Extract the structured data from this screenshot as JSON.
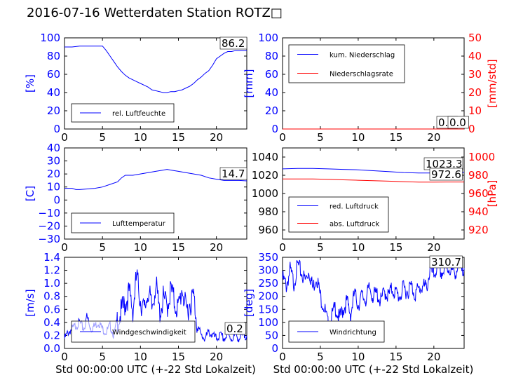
{
  "title": "2016-07-16 Wetterdaten Station ROTZ□",
  "colors": {
    "blue": "#0000ff",
    "red": "#ff0000",
    "light_blue": "#8080ff",
    "black": "#000000"
  },
  "chart_data": [
    {
      "type": "line",
      "ylabel": "[%]",
      "xlim": [
        0,
        24
      ],
      "ylim": [
        0,
        100
      ],
      "xticks": [
        "0",
        "5",
        "10",
        "15",
        "20"
      ],
      "yticks": [
        "0",
        "20",
        "40",
        "60",
        "80",
        "100"
      ],
      "legend": [
        {
          "label": "rel. Luftfeuchte",
          "color": "#0000ff"
        }
      ],
      "legend_position": "lower-left",
      "annotation": "86.2",
      "series": [
        {
          "name": "rel. Luftfeuchte",
          "color": "#0000ff",
          "x": [
            0,
            1,
            2,
            3,
            4,
            5,
            5.5,
            6,
            6.5,
            7,
            7.5,
            8,
            8.5,
            9,
            9.5,
            10,
            10.5,
            11,
            11.5,
            12,
            12.5,
            13,
            13.5,
            14,
            14.5,
            15,
            15.5,
            16,
            16.5,
            17,
            17.5,
            18,
            18.5,
            19,
            19.5,
            20,
            20.5,
            21,
            21.5,
            22,
            22.5,
            23,
            23.5,
            24
          ],
          "y": [
            90,
            90,
            91,
            91,
            91,
            91,
            86,
            80,
            74,
            68,
            63,
            59,
            56,
            54,
            52,
            50,
            48,
            46,
            43,
            42,
            41,
            40,
            40,
            41,
            41,
            42,
            43,
            45,
            47,
            50,
            54,
            57,
            61,
            64,
            70,
            77,
            80,
            83,
            85,
            85,
            86,
            86,
            86,
            86
          ]
        }
      ]
    },
    {
      "type": "line",
      "ylabel": "[mm]",
      "ylabel_right": "[mm/std]",
      "xlim": [
        0,
        24
      ],
      "ylim": [
        0,
        100
      ],
      "ylim_right": [
        0,
        50
      ],
      "xticks": [
        "0",
        "5",
        "10",
        "15",
        "20"
      ],
      "yticks": [
        "0",
        "20",
        "40",
        "60",
        "80",
        "100"
      ],
      "yticks_right": [
        "0",
        "10",
        "20",
        "30",
        "40",
        "50"
      ],
      "legend": [
        {
          "label": "kum. Niederschlag",
          "color": "#0000ff"
        },
        {
          "label": "Niederschlagsrate",
          "color": "#ff0000"
        }
      ],
      "legend_position": "upper-left",
      "annotation_1": "0.0",
      "annotation_2": "0.0",
      "series": [
        {
          "name": "kum. Niederschlag",
          "color": "#0000ff",
          "axis": "left",
          "x": [
            0,
            24
          ],
          "y": [
            0,
            0
          ]
        },
        {
          "name": "Niederschlagsrate",
          "color": "#ff0000",
          "axis": "right",
          "x": [
            0,
            24
          ],
          "y": [
            0,
            0
          ]
        }
      ]
    },
    {
      "type": "line",
      "ylabel": "[C]",
      "xlim": [
        0,
        24
      ],
      "ylim": [
        -30,
        40
      ],
      "xticks": [
        "0",
        "5",
        "10",
        "15",
        "20"
      ],
      "yticks": [
        "−30",
        "−20",
        "−10",
        "0",
        "10",
        "20",
        "30",
        "40"
      ],
      "legend": [
        {
          "label": "Lufttemperatur",
          "color": "#0000ff"
        }
      ],
      "legend_position": "lower-left",
      "annotation": "14.7",
      "series": [
        {
          "name": "Lufttemperatur",
          "color": "#0000ff",
          "x": [
            0,
            1,
            1.5,
            2,
            3,
            4,
            5,
            6,
            7,
            7.5,
            8,
            9,
            10,
            11,
            12,
            13,
            13.5,
            14,
            15,
            16,
            17,
            18,
            19,
            20,
            21,
            22,
            23,
            24
          ],
          "y": [
            9,
            9,
            8,
            8,
            8.5,
            9,
            10,
            12,
            14,
            17,
            19,
            19,
            20,
            21,
            22,
            23,
            23.5,
            23,
            22,
            21,
            20,
            19,
            17,
            16,
            15,
            15,
            15,
            14.7
          ]
        }
      ]
    },
    {
      "type": "line",
      "ylabel_right": "[hPa]",
      "xlim": [
        0,
        24
      ],
      "ylim": [
        950,
        1050
      ],
      "ylim_right": [
        910,
        1010
      ],
      "xticks": [
        "0",
        "5",
        "10",
        "15",
        "20"
      ],
      "yticks": [
        "960",
        "980",
        "1000",
        "1020",
        "1040"
      ],
      "yticks_right": [
        "920",
        "940",
        "960",
        "980",
        "1000"
      ],
      "legend": [
        {
          "label": "red. Luftdruck",
          "color": "#0000ff"
        },
        {
          "label": "abs. Luftdruck",
          "color": "#ff0000"
        }
      ],
      "legend_position": "lower-left",
      "annotation_1": "1023.3",
      "annotation_2": "972.6",
      "series": [
        {
          "name": "red. Luftdruck",
          "color": "#0000ff",
          "axis": "left",
          "x": [
            0,
            2,
            4,
            6,
            8,
            10,
            12,
            14,
            16,
            18,
            20,
            22,
            24
          ],
          "y": [
            1027,
            1027.5,
            1027.5,
            1027,
            1026.5,
            1026,
            1025,
            1024,
            1023,
            1022.5,
            1022.5,
            1023,
            1023.3
          ]
        },
        {
          "name": "abs. Luftdruck",
          "color": "#ff0000",
          "axis": "right",
          "x": [
            0,
            2,
            4,
            6,
            8,
            10,
            12,
            14,
            16,
            18,
            20,
            22,
            24
          ],
          "y": [
            976,
            976,
            976,
            975.5,
            975,
            974.5,
            974,
            973.5,
            973,
            972.5,
            972.5,
            972.6,
            972.6
          ]
        }
      ]
    },
    {
      "type": "line",
      "ylabel": "[m/s]",
      "xlabel": "Std 00:00:00 UTC (+-22 Std Lokalzeit)",
      "xlim": [
        0,
        24
      ],
      "ylim": [
        0,
        1.4
      ],
      "xticks": [
        "0",
        "5",
        "10",
        "15",
        "20"
      ],
      "yticks": [
        "0.0",
        "0.2",
        "0.4",
        "0.6",
        "0.8",
        "1.0",
        "1.2",
        "1.4"
      ],
      "legend": [
        {
          "label": "Windgeschwindigkeit",
          "color": "#0000ff"
        }
      ],
      "legend_position": "lower-center",
      "annotation": "0.2",
      "series": [
        {
          "name": "Windgeschwindigkeit",
          "color": "#0000ff",
          "x": [
            0,
            0.5,
            1,
            1.5,
            2,
            2.5,
            3,
            3.5,
            4,
            4.5,
            5,
            5.5,
            6,
            6.5,
            7,
            7.5,
            8,
            8.5,
            9,
            9.5,
            10,
            10.5,
            11,
            11.5,
            12,
            12.5,
            13,
            13.5,
            14,
            14.5,
            15,
            15.5,
            16,
            16.5,
            17,
            17.5,
            18,
            18.5,
            19,
            19.5,
            20,
            20.5,
            21,
            21.5,
            22,
            22.5,
            23,
            23.5,
            24
          ],
          "y": [
            0.15,
            0.25,
            0.3,
            0.35,
            0.4,
            0.3,
            0.45,
            0.3,
            0.35,
            0.4,
            0.3,
            0.25,
            0.35,
            0.2,
            0.45,
            0.55,
            0.7,
            0.85,
            0.6,
            1.1,
            0.75,
            0.55,
            0.9,
            0.6,
            1.0,
            0.55,
            0.75,
            0.65,
            0.9,
            0.7,
            0.6,
            0.95,
            0.55,
            0.7,
            0.8,
            0.35,
            0.2,
            0.15,
            0.25,
            0.2,
            0.15,
            0.2,
            0.15,
            0.2,
            0.15,
            0.2,
            0.15,
            0.2,
            0.2
          ]
        }
      ]
    },
    {
      "type": "line",
      "ylabel": "[deg]",
      "xlabel": "Std 00:00:00 UTC (+-22 Std Lokalzeit)",
      "xlim": [
        0,
        24
      ],
      "ylim": [
        0,
        350
      ],
      "xticks": [
        "0",
        "5",
        "10",
        "15",
        "20"
      ],
      "yticks": [
        "0",
        "50",
        "100",
        "150",
        "200",
        "250",
        "300",
        "350"
      ],
      "legend": [
        {
          "label": "Windrichtung",
          "color": "#0000ff"
        }
      ],
      "legend_position": "lower-left",
      "annotation": "310.7",
      "series": [
        {
          "name": "Windrichtung",
          "color": "#0000ff",
          "x": [
            0,
            0.5,
            1,
            1.5,
            2,
            2.5,
            3,
            3.5,
            4,
            4.5,
            5,
            5.5,
            6,
            6.5,
            7,
            7.5,
            8,
            8.5,
            9,
            9.5,
            10,
            10.5,
            11,
            11.5,
            12,
            12.5,
            13,
            13.5,
            14,
            14.5,
            15,
            15.5,
            16,
            16.5,
            17,
            17.5,
            18,
            18.5,
            19,
            19.5,
            20,
            20.5,
            21,
            21.5,
            22,
            22.5,
            23,
            23.5,
            24
          ],
          "y": [
            270,
            240,
            300,
            250,
            320,
            290,
            260,
            300,
            230,
            280,
            200,
            160,
            90,
            120,
            160,
            110,
            150,
            180,
            130,
            210,
            170,
            200,
            190,
            230,
            200,
            210,
            180,
            220,
            200,
            230,
            210,
            200,
            230,
            220,
            240,
            210,
            225,
            240,
            230,
            300,
            280,
            320,
            290,
            300,
            310,
            290,
            300,
            320,
            310
          ]
        }
      ]
    }
  ]
}
